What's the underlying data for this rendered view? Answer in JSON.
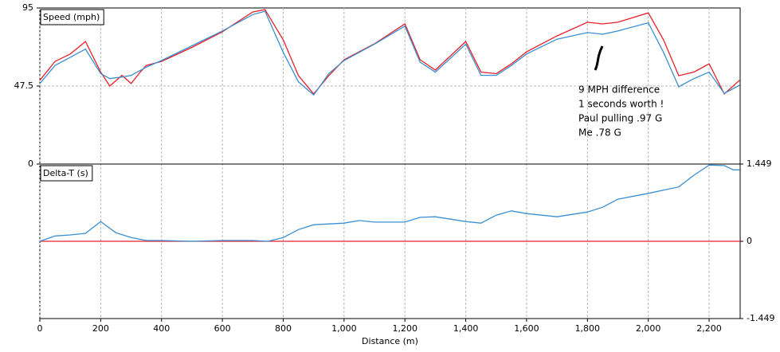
{
  "chart_data": [
    {
      "type": "line",
      "title": "Speed (mph)",
      "x": [
        0,
        50,
        100,
        150,
        200,
        230,
        270,
        300,
        330,
        350,
        400,
        500,
        600,
        700,
        740,
        800,
        850,
        900,
        950,
        1000,
        1100,
        1200,
        1250,
        1300,
        1400,
        1450,
        1500,
        1550,
        1600,
        1700,
        1800,
        1850,
        1900,
        2000,
        2050,
        2100,
        2150,
        2200,
        2250,
        2300
      ],
      "series": [
        {
          "color": "#e8202a",
          "values": [
            51,
            62.5,
            67,
            74.6,
            56,
            47.5,
            54,
            49,
            56,
            60,
            62.5,
            71,
            80.5,
            92.6,
            94,
            75.6,
            53.8,
            42.7,
            53.8,
            63.5,
            73.2,
            85.3,
            63.5,
            57.2,
            74.6,
            56,
            55,
            61,
            68.3,
            78,
            86.3,
            85.3,
            86.3,
            92,
            75.6,
            53.8,
            56,
            61,
            42.7,
            51
          ]
        },
        {
          "color": "#3b8fd0",
          "values": [
            49,
            60,
            65,
            70,
            55,
            52,
            53,
            54,
            57,
            59,
            63,
            72,
            81,
            91,
            93,
            68,
            50,
            42,
            55,
            63,
            73,
            84,
            62,
            56,
            73,
            54,
            54,
            60,
            67,
            76,
            80,
            79,
            81,
            86,
            68,
            47,
            52,
            56,
            43,
            48
          ]
        }
      ],
      "xlim": [
        0,
        2302
      ],
      "ylim": [
        0,
        95
      ],
      "yticks": [
        0,
        47.5,
        95
      ],
      "grid": true,
      "annotations": [
        "9 MPH difference",
        "1 seconds worth !",
        "Paul pulling .97 G",
        "Me .78 G"
      ]
    },
    {
      "type": "line",
      "title": "Delta-T (s)",
      "x_label": "Distance (m)",
      "x": [
        0,
        50,
        100,
        150,
        200,
        250,
        300,
        350,
        400,
        500,
        600,
        700,
        750,
        800,
        850,
        900,
        1000,
        1050,
        1100,
        1200,
        1250,
        1300,
        1400,
        1450,
        1500,
        1550,
        1600,
        1700,
        1800,
        1850,
        1900,
        2000,
        2100,
        2150,
        2200,
        2250,
        2280,
        2300
      ],
      "series": [
        {
          "color": "#e8202a",
          "x": [
            0,
            2302
          ],
          "values": [
            0,
            0
          ]
        },
        {
          "color": "#3b8fd0",
          "values": [
            0,
            0.1,
            0.12,
            0.15,
            0.37,
            0.16,
            0.07,
            0.015,
            0.015,
            0,
            0.015,
            0.015,
            0,
            0.07,
            0.22,
            0.31,
            0.34,
            0.39,
            0.36,
            0.36,
            0.45,
            0.46,
            0.37,
            0.34,
            0.49,
            0.57,
            0.52,
            0.46,
            0.55,
            0.64,
            0.79,
            0.9,
            1.02,
            1.24,
            1.43,
            1.42,
            1.34,
            1.34
          ]
        }
      ],
      "xlim": [
        0,
        2302
      ],
      "ylim": [
        -1.449,
        1.449
      ],
      "yticks": [
        -1.449,
        0,
        1.449
      ],
      "y_axis_side": "right",
      "grid": true,
      "xticks": [
        0,
        200,
        400,
        600,
        800,
        {
          "value": 1000,
          "label": "1,000"
        },
        {
          "value": 1200,
          "label": "1,200"
        },
        {
          "value": 1400,
          "label": "1,400"
        },
        {
          "value": 1600,
          "label": "1,600"
        },
        {
          "value": 1800,
          "label": "1,800"
        },
        {
          "value": 2000,
          "label": "2,000"
        },
        {
          "value": 2200,
          "label": "2,200"
        }
      ]
    }
  ]
}
